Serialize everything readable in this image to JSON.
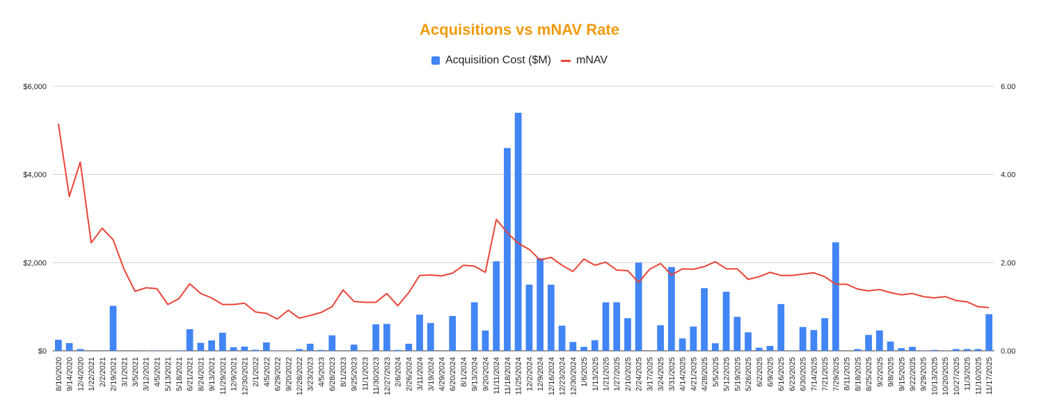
{
  "colors": {
    "title": "#f29a0b",
    "bars": "#4285f4",
    "line": "#ea4335",
    "grid": "#d0d0d0",
    "text": "#222222"
  },
  "chart_data": {
    "type": "bar",
    "title": "Acquisitions vs mNAV Rate",
    "legend_position": "top",
    "grid": true,
    "legend": {
      "bars": "Acquisition Cost ($M)",
      "line": "mNAV"
    },
    "y_left": {
      "ticks": [
        "$0",
        "$2,000",
        "$4,000",
        "$6,000"
      ],
      "range": [
        0,
        6000
      ]
    },
    "y_right": {
      "ticks": [
        "0.00",
        "2.00",
        "4.00",
        "6.00"
      ],
      "range": [
        0,
        6
      ]
    },
    "x_tick_labels": [
      "8/10/2020",
      "9/14/2020",
      "12/4/2020",
      "1/22/2021",
      "2/2/2021",
      "2/19/2021",
      "3/1/2021",
      "3/5/2021",
      "3/12/2021",
      "4/5/2021",
      "5/13/2021",
      "5/18/2021",
      "6/21/2021",
      "8/24/2021",
      "9/13/2021",
      "11/29/2021",
      "12/9/2021",
      "12/30/2021",
      "2/1/2022",
      "4/5/2022",
      "6/29/2022",
      "9/20/2022",
      "12/28/2022",
      "3/23/2023",
      "4/5/2023",
      "6/28/2023",
      "8/1/2023",
      "9/25/2023",
      "11/1/2023",
      "11/30/2023",
      "12/27/2023",
      "2/6/2024",
      "2/26/2024",
      "3/11/2024",
      "3/19/2024",
      "4/29/2024",
      "6/20/2024",
      "8/1/2024",
      "9/13/2024",
      "9/20/2024",
      "11/11/2024",
      "11/18/2024",
      "11/25/2024",
      "12/2/2024",
      "12/9/2024",
      "12/16/2024",
      "12/23/2024",
      "12/30/2024",
      "1/6/2025",
      "1/13/2025",
      "1/21/2025",
      "1/27/2025",
      "2/10/2025",
      "2/24/2025",
      "3/17/2025",
      "3/24/2025",
      "3/31/2025",
      "4/14/2025",
      "4/21/2025",
      "4/28/2025",
      "5/5/2025",
      "5/12/2025",
      "5/19/2025",
      "5/26/2025",
      "6/2/2025",
      "6/9/2025",
      "6/16/2025",
      "6/23/2025",
      "6/30/2025",
      "7/14/2025",
      "7/21/2025",
      "7/29/2025",
      "8/11/2025",
      "8/18/2025",
      "8/25/2025",
      "9/2/2025",
      "9/8/2025",
      "9/15/2025",
      "9/22/2025",
      "9/29/2025",
      "10/13/2025",
      "10/20/2025",
      "10/27/2025",
      "11/3/2025",
      "11/10/2025",
      "11/17/2025"
    ],
    "series": [
      {
        "name": "Acquisition Cost ($M)",
        "type": "bar",
        "axis": "left",
        "values": [
          250,
          175,
          40,
          0,
          0,
          1020,
          0,
          0,
          5,
          5,
          5,
          10,
          490,
          180,
          235,
          410,
          80,
          95,
          25,
          190,
          5,
          5,
          40,
          160,
          20,
          350,
          0,
          140,
          0,
          600,
          610,
          20,
          160,
          820,
          630,
          0,
          790,
          0,
          1100,
          460,
          2030,
          4600,
          5400,
          1500,
          2100,
          1500,
          570,
          200,
          90,
          240,
          1100,
          1100,
          740,
          2000,
          0,
          580,
          1900,
          280,
          550,
          1420,
          170,
          1340,
          770,
          420,
          70,
          110,
          1060,
          10,
          540,
          470,
          740,
          2460,
          0,
          40,
          360,
          460,
          210,
          60,
          90,
          5,
          20,
          5,
          40,
          40,
          40,
          830
        ]
      },
      {
        "name": "mNAV",
        "type": "line",
        "axis": "right",
        "values": [
          5.15,
          3.5,
          4.28,
          2.45,
          2.78,
          2.52,
          1.85,
          1.35,
          1.43,
          1.41,
          1.05,
          1.18,
          1.52,
          1.3,
          1.2,
          1.05,
          1.05,
          1.08,
          0.88,
          0.85,
          0.72,
          0.92,
          0.74,
          0.8,
          0.87,
          1.0,
          1.38,
          1.12,
          1.1,
          1.1,
          1.3,
          1.02,
          1.32,
          1.71,
          1.72,
          1.7,
          1.76,
          1.94,
          1.92,
          1.78,
          2.98,
          2.68,
          2.44,
          2.3,
          2.06,
          2.12,
          1.94,
          1.8,
          2.08,
          1.94,
          2.01,
          1.83,
          1.82,
          1.55,
          1.85,
          1.98,
          1.72,
          1.86,
          1.85,
          1.91,
          2.02,
          1.86,
          1.86,
          1.62,
          1.68,
          1.78,
          1.71,
          1.71,
          1.74,
          1.77,
          1.68,
          1.51,
          1.51,
          1.4,
          1.36,
          1.39,
          1.32,
          1.27,
          1.3,
          1.23,
          1.2,
          1.23,
          1.14,
          1.11,
          1.0,
          0.98
        ]
      }
    ]
  }
}
